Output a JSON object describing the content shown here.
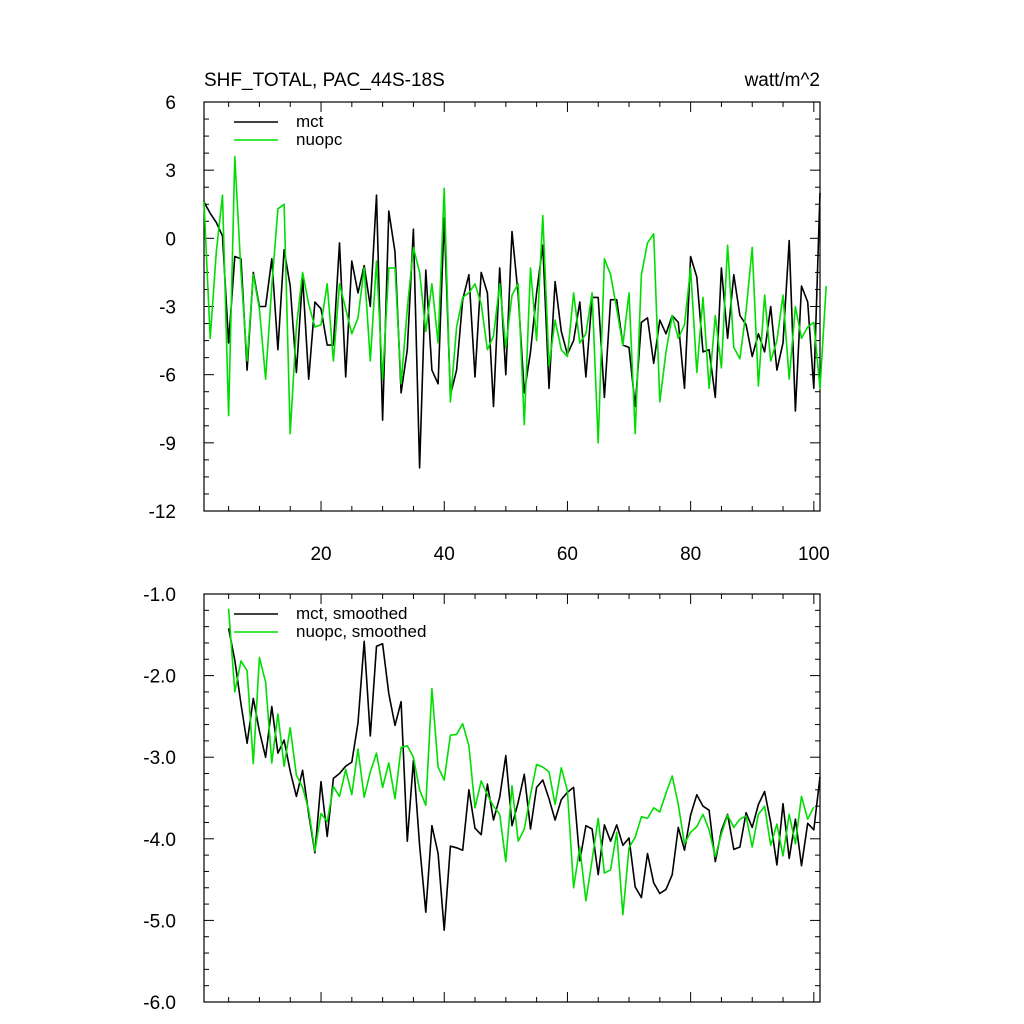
{
  "top_title_left": "SHF_TOTAL, PAC_44S-18S",
  "top_title_right": "watt/m^2",
  "chart_data": [
    {
      "type": "line",
      "xlim": [
        1,
        101
      ],
      "ylim": [
        -12,
        6
      ],
      "x_ticks": [
        20,
        40,
        60,
        80,
        100
      ],
      "x_tick_labels": [
        "20",
        "40",
        "60",
        "80",
        "100"
      ],
      "y_ticks": [
        6,
        3,
        0,
        -3,
        -6,
        -9,
        -12
      ],
      "y_tick_labels": [
        "6",
        "3",
        "0",
        "-3",
        "-6",
        "-9",
        "-12"
      ],
      "grid": false,
      "legend_position": "top-left",
      "series": [
        {
          "name": "mct",
          "color": "#000000",
          "x_start": 1,
          "values": [
            1.6,
            1.1,
            0.7,
            0.1,
            -4.6,
            -0.8,
            -0.9,
            -5.8,
            -1.5,
            -3.0,
            -3.0,
            -0.9,
            -4.9,
            -0.5,
            -2.1,
            -5.9,
            -1.7,
            -6.2,
            -2.8,
            -3.1,
            -4.7,
            -4.7,
            -0.2,
            -6.1,
            -1.0,
            -2.4,
            -1.2,
            -3.0,
            1.9,
            -8.0,
            1.2,
            -0.6,
            -6.8,
            -4.9,
            0.4,
            -10.1,
            -1.4,
            -5.8,
            -6.4,
            0.9,
            -6.9,
            -5.8,
            -2.7,
            -1.6,
            -6.1,
            -1.5,
            -2.4,
            -7.4,
            -1.3,
            -6.0,
            0.3,
            -2.5,
            -6.8,
            -5.0,
            -2.4,
            -0.3,
            -6.6,
            -1.9,
            -4.1,
            -5.1,
            -4.5,
            -2.8,
            -6.1,
            -2.6,
            -2.6,
            -7.0,
            -2.7,
            -2.7,
            -4.7,
            -4.8,
            -7.4,
            -3.7,
            -3.5,
            -5.5,
            -3.6,
            -4.2,
            -3.4,
            -3.7,
            -6.6,
            -0.8,
            -1.7,
            -5.0,
            -4.9,
            -7.0,
            -1.3,
            -4.4,
            -1.6,
            -3.4,
            -3.8,
            -5.2,
            -4.2,
            -5.0,
            -3.0,
            -5.8,
            -4.6,
            -0.1,
            -7.6,
            -2.1,
            -2.8,
            -6.6,
            2.0
          ]
        },
        {
          "name": "nuopc",
          "color": "#00dd00",
          "x_start": 1,
          "values": [
            1.6,
            -4.4,
            -0.6,
            1.9,
            -7.8,
            3.6,
            -1.5,
            -5.4,
            -1.6,
            -3.1,
            -6.2,
            -2.1,
            1.3,
            1.5,
            -8.6,
            -3.9,
            -1.5,
            -2.9,
            -3.9,
            -3.8,
            -2.0,
            -5.4,
            -2.0,
            -3.1,
            -4.2,
            -3.5,
            -1.3,
            -5.4,
            -1.0,
            -6.2,
            -1.3,
            -1.3,
            -6.4,
            -3.1,
            -0.4,
            -1.5,
            -4.1,
            -2.0,
            -4.6,
            2.2,
            -7.2,
            -3.9,
            -2.6,
            -2.4,
            -2.0,
            -2.9,
            -4.9,
            -4.3,
            -2.0,
            -4.8,
            -2.5,
            -2.0,
            -8.2,
            -1.3,
            -4.5,
            1.0,
            -5.6,
            -3.6,
            -4.9,
            -5.2,
            -2.4,
            -4.6,
            -4.2,
            -2.4,
            -9.0,
            -0.9,
            -1.6,
            -3.1,
            -4.7,
            -2.4,
            -8.6,
            -1.6,
            -0.2,
            0.2,
            -7.2,
            -5.0,
            -3.4,
            -4.4,
            -3.8,
            -1.3,
            -5.9,
            -2.6,
            -6.6,
            -3.4,
            -5.7,
            -0.3,
            -4.8,
            -5.3,
            -3.2,
            -0.4,
            -6.5,
            -2.5,
            -5.4,
            -4.5,
            -2.5,
            -6.2,
            -3.0,
            -4.4,
            -3.9,
            -3.7,
            -6.6,
            -2.1
          ]
        }
      ]
    },
    {
      "type": "line",
      "xlim": [
        1,
        101
      ],
      "ylim": [
        -6.0,
        -1.0
      ],
      "x_ticks": [
        20,
        40,
        60,
        80,
        100
      ],
      "x_tick_labels": [],
      "y_ticks": [
        -1.0,
        -2.0,
        -3.0,
        -4.0,
        -5.0,
        -6.0
      ],
      "y_tick_labels": [
        "-1.0",
        "-2.0",
        "-3.0",
        "-4.0",
        "-5.0",
        "-6.0"
      ],
      "grid": false,
      "legend_position": "top-left",
      "series": [
        {
          "name": "mct, smoothed",
          "color": "#000000",
          "x_start": 5,
          "values": [
            -1.42,
            -1.81,
            -2.35,
            -2.83,
            -2.28,
            -2.68,
            -3.0,
            -2.38,
            -2.95,
            -2.79,
            -3.17,
            -3.48,
            -3.16,
            -3.7,
            -4.17,
            -3.3,
            -3.97,
            -3.26,
            -3.2,
            -3.11,
            -3.06,
            -2.58,
            -1.58,
            -2.74,
            -1.64,
            -1.61,
            -2.22,
            -2.61,
            -2.32,
            -4.03,
            -3.04,
            -4.08,
            -4.9,
            -3.84,
            -4.18,
            -5.12,
            -4.09,
            -4.11,
            -4.14,
            -3.4,
            -3.87,
            -3.95,
            -3.33,
            -3.77,
            -3.49,
            -2.98,
            -3.84,
            -3.55,
            -3.21,
            -3.88,
            -3.37,
            -3.28,
            -3.51,
            -3.77,
            -3.52,
            -3.43,
            -3.37,
            -4.27,
            -3.84,
            -3.88,
            -4.44,
            -3.83,
            -4.03,
            -3.83,
            -4.08,
            -3.99,
            -4.59,
            -4.72,
            -4.18,
            -4.54,
            -4.67,
            -4.62,
            -4.44,
            -3.86,
            -4.14,
            -3.71,
            -3.46,
            -3.6,
            -3.65,
            -4.28,
            -3.9,
            -3.7,
            -4.13,
            -4.1,
            -3.68,
            -3.86,
            -3.58,
            -3.42,
            -3.8,
            -4.32,
            -3.57,
            -4.24,
            -3.76,
            -4.33,
            -3.81,
            -3.89,
            -3.24
          ]
        },
        {
          "name": "nuopc, smoothed",
          "color": "#00dd00",
          "x_start": 5,
          "values": [
            -1.18,
            -2.2,
            -1.82,
            -1.94,
            -3.08,
            -1.78,
            -2.08,
            -3.07,
            -2.47,
            -3.11,
            -2.64,
            -3.22,
            -3.37,
            -3.65,
            -4.15,
            -3.69,
            -3.79,
            -3.36,
            -3.48,
            -3.15,
            -3.46,
            -2.9,
            -3.49,
            -3.18,
            -2.95,
            -3.37,
            -3.07,
            -3.51,
            -2.88,
            -2.86,
            -3.0,
            -3.4,
            -3.59,
            -2.16,
            -3.12,
            -3.28,
            -2.73,
            -2.72,
            -2.59,
            -2.86,
            -3.62,
            -3.29,
            -3.46,
            -3.6,
            -3.7,
            -4.28,
            -3.35,
            -4.03,
            -3.88,
            -3.46,
            -3.09,
            -3.12,
            -3.18,
            -3.58,
            -3.13,
            -3.41,
            -4.6,
            -4.1,
            -4.76,
            -4.26,
            -3.75,
            -4.42,
            -4.38,
            -3.92,
            -4.93,
            -4.11,
            -3.98,
            -3.73,
            -3.75,
            -3.62,
            -3.67,
            -3.44,
            -3.23,
            -3.58,
            -4.06,
            -3.92,
            -3.85,
            -3.7,
            -3.89,
            -4.22,
            -3.94,
            -3.71,
            -3.86,
            -3.76,
            -3.72,
            -4.1,
            -3.7,
            -3.6,
            -4.08,
            -3.82,
            -4.21,
            -3.7,
            -4.06,
            -3.48,
            -3.76,
            -3.61
          ]
        }
      ]
    }
  ]
}
